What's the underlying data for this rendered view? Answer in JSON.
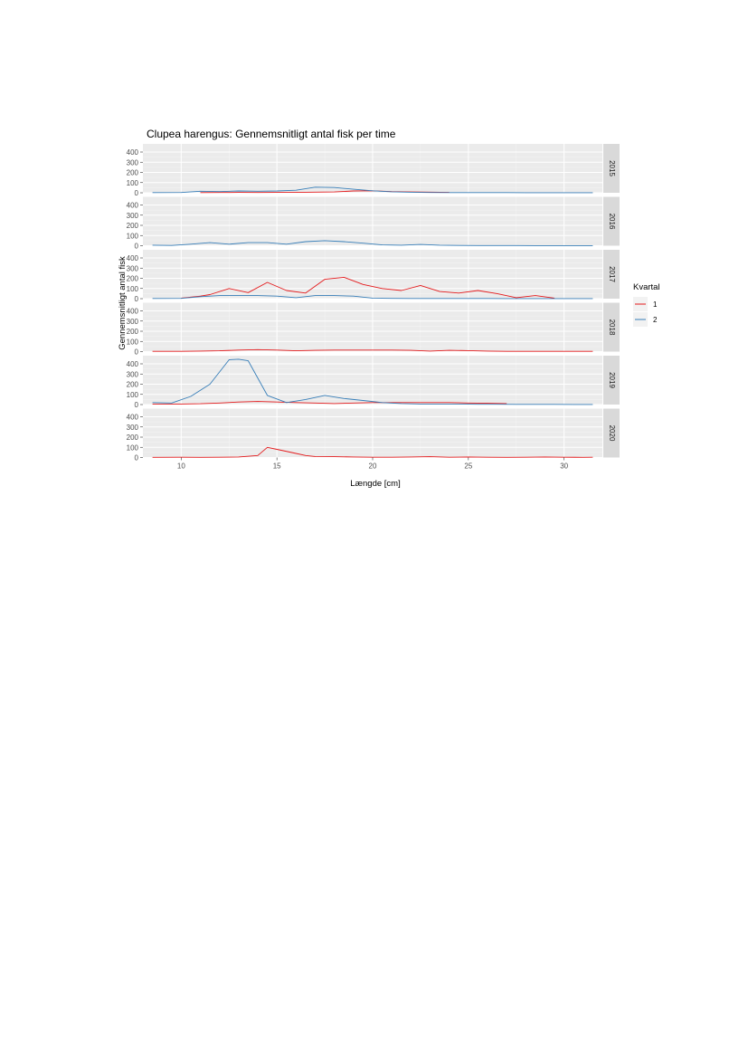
{
  "chart_data": {
    "type": "line",
    "title": "Clupea harengus: Gennemsnitligt antal fisk per time",
    "xlabel": "Længde [cm]",
    "ylabel": "Gennemsnitligt antal fisk",
    "xlim": [
      8,
      32
    ],
    "ylim": [
      0,
      480
    ],
    "x_ticks": [
      10,
      15,
      20,
      25,
      30
    ],
    "y_ticks": [
      0,
      100,
      200,
      300,
      400
    ],
    "grid": true,
    "facets": [
      "2015",
      "2016",
      "2017",
      "2018",
      "2019",
      "2020"
    ],
    "legend": {
      "title": "Kvartal",
      "position": "right",
      "entries": [
        {
          "label": "1",
          "color": "#e41a1c"
        },
        {
          "label": "2",
          "color": "#377eb8"
        }
      ]
    },
    "panels": [
      {
        "facet": "2015",
        "series": [
          {
            "kvartal": "1",
            "color": "#e41a1c",
            "x": [
              11,
              12,
              13,
              14,
              15,
              16,
              17,
              18,
              19,
              20,
              21,
              22,
              23,
              24
            ],
            "y": [
              2,
              3,
              4,
              3,
              4,
              4,
              6,
              8,
              18,
              20,
              12,
              8,
              6,
              4
            ]
          },
          {
            "kvartal": "2",
            "color": "#377eb8",
            "x": [
              8.5,
              10,
              11,
              12,
              13,
              14,
              15,
              16,
              17,
              18,
              19,
              20,
              21,
              22,
              23,
              24,
              25,
              26,
              27,
              28,
              29,
              30,
              31.5
            ],
            "y": [
              2,
              3,
              15,
              12,
              18,
              15,
              18,
              25,
              55,
              52,
              35,
              20,
              10,
              5,
              3,
              2,
              2,
              2,
              2,
              1,
              1,
              1,
              1
            ]
          }
        ]
      },
      {
        "facet": "2016",
        "series": [
          {
            "kvartal": "2",
            "color": "#377eb8",
            "x": [
              8.5,
              9.5,
              10.5,
              11.5,
              12.5,
              13.5,
              14.5,
              15.5,
              16.5,
              17.5,
              18.5,
              19.5,
              20.5,
              21.5,
              22.5,
              23.5,
              24.5,
              25.5,
              26.5,
              27.5,
              28.5,
              29.5,
              30.5,
              31.5
            ],
            "y": [
              5,
              3,
              15,
              30,
              15,
              30,
              30,
              15,
              40,
              50,
              40,
              25,
              8,
              5,
              12,
              5,
              3,
              2,
              2,
              2,
              1,
              1,
              1,
              1
            ]
          }
        ]
      },
      {
        "facet": "2017",
        "series": [
          {
            "kvartal": "1",
            "color": "#e41a1c",
            "x": [
              10,
              11,
              11.5,
              12.5,
              13.5,
              14.5,
              15.5,
              16.5,
              17.5,
              18.5,
              19.5,
              20.5,
              21.5,
              22.5,
              23.5,
              24.5,
              25.5,
              26.5,
              27.5,
              28.5,
              29.5
            ],
            "y": [
              5,
              25,
              40,
              100,
              60,
              160,
              80,
              55,
              190,
              210,
              140,
              100,
              80,
              130,
              70,
              55,
              80,
              50,
              10,
              30,
              5
            ]
          },
          {
            "kvartal": "2",
            "color": "#377eb8",
            "x": [
              8.5,
              10,
              11,
              12,
              13,
              14,
              15,
              16,
              17,
              18,
              19,
              20,
              21,
              22,
              23,
              24,
              25,
              26,
              27,
              28,
              29,
              30,
              31.5
            ],
            "y": [
              2,
              3,
              20,
              30,
              30,
              30,
              25,
              10,
              30,
              30,
              25,
              5,
              3,
              2,
              2,
              2,
              2,
              2,
              1,
              1,
              1,
              1,
              1
            ]
          }
        ]
      },
      {
        "facet": "2018",
        "series": [
          {
            "kvartal": "1",
            "color": "#e41a1c",
            "x": [
              8.5,
              10,
              11,
              12,
              13,
              14,
              15,
              16,
              17,
              18,
              19,
              20,
              21,
              22,
              23,
              24,
              25,
              26,
              27,
              28,
              29,
              30,
              31.5
            ],
            "y": [
              3,
              3,
              5,
              8,
              15,
              20,
              15,
              8,
              12,
              15,
              15,
              15,
              15,
              12,
              5,
              12,
              10,
              5,
              3,
              3,
              3,
              3,
              3
            ]
          }
        ]
      },
      {
        "facet": "2019",
        "series": [
          {
            "kvartal": "1",
            "color": "#e41a1c",
            "x": [
              8.5,
              10,
              11,
              12,
              13,
              14,
              15,
              16,
              17,
              18,
              19,
              20,
              21,
              22,
              23,
              24,
              25,
              26,
              27
            ],
            "y": [
              5,
              5,
              8,
              15,
              25,
              30,
              25,
              20,
              15,
              10,
              15,
              20,
              20,
              20,
              20,
              20,
              15,
              12,
              10
            ]
          },
          {
            "kvartal": "2",
            "color": "#377eb8",
            "x": [
              8.5,
              9.5,
              10.5,
              11.5,
              12.5,
              13,
              13.5,
              14.5,
              15.5,
              16.5,
              17.5,
              18.5,
              19.5,
              20.5,
              21.5,
              22.5,
              23.5,
              24.5,
              25.5,
              26.5,
              27.5,
              28.5,
              29.5,
              30.5,
              31.5
            ],
            "y": [
              20,
              15,
              80,
              200,
              440,
              445,
              430,
              90,
              20,
              50,
              90,
              60,
              40,
              20,
              10,
              5,
              5,
              5,
              3,
              3,
              2,
              2,
              2,
              1,
              1
            ]
          }
        ]
      },
      {
        "facet": "2020",
        "series": [
          {
            "kvartal": "1",
            "color": "#e41a1c",
            "x": [
              8.5,
              10,
              11,
              12,
              13,
              14,
              14.5,
              15,
              16,
              16.5,
              17,
              18,
              19,
              20,
              21,
              22,
              23,
              24,
              25,
              26,
              27,
              28,
              29,
              30,
              31,
              31.5
            ],
            "y": [
              2,
              3,
              2,
              3,
              5,
              20,
              100,
              80,
              40,
              20,
              10,
              8,
              5,
              3,
              3,
              5,
              8,
              3,
              5,
              3,
              2,
              3,
              5,
              3,
              2,
              3
            ]
          }
        ]
      }
    ]
  }
}
